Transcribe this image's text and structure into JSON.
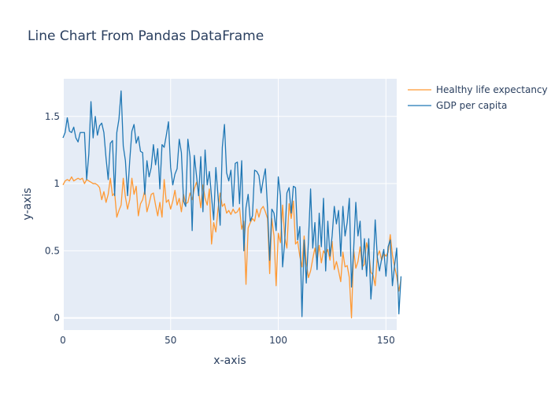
{
  "chart_data": {
    "type": "line",
    "title": "Line Chart From Pandas DataFrame",
    "xlabel": "x-axis",
    "ylabel": "y-axis",
    "xlim": [
      0,
      155
    ],
    "ylim": [
      -0.09,
      1.78
    ],
    "xticks": [
      0,
      50,
      100,
      150
    ],
    "yticks": [
      0,
      0.5,
      1,
      1.5
    ],
    "grid": true,
    "legend_position": "top-right-outside",
    "series": [
      {
        "name": "Healthy life expectancy",
        "color": "#ff9933",
        "values": [
          0.99,
          1.02,
          1.03,
          1.02,
          1.05,
          1.02,
          1.03,
          1.04,
          1.03,
          1.04,
          1.0,
          1.03,
          1.02,
          1.01,
          1.0,
          1.0,
          0.99,
          0.97,
          0.88,
          0.94,
          0.86,
          0.92,
          1.04,
          0.91,
          0.93,
          0.75,
          0.8,
          0.84,
          1.04,
          0.9,
          0.81,
          0.88,
          1.04,
          0.92,
          0.98,
          0.76,
          0.85,
          0.88,
          0.95,
          0.79,
          0.85,
          0.92,
          0.93,
          0.84,
          0.76,
          0.86,
          0.75,
          1.03,
          0.86,
          0.88,
          0.81,
          0.87,
          0.95,
          0.84,
          0.89,
          0.79,
          0.92,
          0.85,
          0.86,
          0.93,
          0.88,
          0.96,
          1.01,
          0.94,
          0.82,
          0.99,
          0.89,
          0.84,
          0.96,
          0.55,
          0.71,
          0.64,
          0.81,
          0.93,
          0.83,
          0.85,
          0.78,
          0.8,
          0.77,
          0.81,
          0.78,
          0.79,
          0.82,
          0.66,
          0.72,
          0.25,
          0.67,
          0.71,
          0.74,
          0.72,
          0.81,
          0.75,
          0.81,
          0.83,
          0.79,
          0.74,
          0.33,
          0.74,
          0.61,
          0.24,
          0.63,
          0.56,
          0.84,
          0.6,
          0.52,
          0.85,
          0.74,
          0.87,
          0.55,
          0.57,
          0.46,
          0.38,
          0.61,
          0.41,
          0.3,
          0.35,
          0.44,
          0.52,
          0.42,
          0.54,
          0.41,
          0.5,
          0.47,
          0.51,
          0.43,
          0.57,
          0.36,
          0.42,
          0.35,
          0.27,
          0.49,
          0.38,
          0.39,
          0.3,
          0.0,
          0.51,
          0.37,
          0.42,
          0.53,
          0.38,
          0.4,
          0.56,
          0.49,
          0.34,
          0.32,
          0.24,
          0.46,
          0.5,
          0.43,
          0.48,
          0.46,
          0.49,
          0.62,
          0.47,
          0.38,
          0.31,
          0.2,
          0.29
        ]
      },
      {
        "name": "GDP per capita",
        "color": "#1f77b4",
        "values": [
          1.34,
          1.38,
          1.49,
          1.39,
          1.38,
          1.42,
          1.34,
          1.31,
          1.38,
          1.38,
          1.38,
          1.03,
          1.22,
          1.61,
          1.34,
          1.5,
          1.36,
          1.43,
          1.45,
          1.38,
          1.19,
          1.03,
          1.3,
          1.32,
          0.91,
          1.38,
          1.48,
          1.69,
          1.28,
          1.17,
          0.91,
          1.17,
          1.39,
          1.44,
          1.3,
          1.35,
          1.24,
          1.23,
          0.92,
          1.17,
          1.05,
          1.12,
          1.29,
          1.14,
          1.26,
          0.96,
          1.29,
          1.27,
          1.36,
          1.46,
          1.12,
          0.99,
          1.07,
          1.11,
          1.33,
          1.23,
          0.87,
          0.83,
          1.33,
          1.2,
          0.65,
          1.21,
          1.06,
          0.91,
          1.2,
          0.79,
          1.25,
          0.99,
          1.09,
          0.9,
          0.73,
          1.12,
          0.91,
          0.69,
          1.27,
          1.44,
          1.08,
          1.02,
          1.1,
          0.83,
          1.15,
          1.16,
          0.85,
          1.17,
          0.5,
          0.82,
          0.92,
          0.72,
          0.76,
          1.1,
          1.09,
          1.06,
          0.93,
          1.03,
          1.11,
          0.82,
          0.43,
          0.81,
          0.78,
          0.65,
          1.05,
          0.91,
          0.38,
          0.57,
          0.93,
          0.97,
          0.78,
          0.98,
          0.97,
          0.58,
          0.68,
          0.01,
          0.58,
          0.26,
          0.57,
          0.96,
          0.52,
          0.71,
          0.36,
          0.78,
          0.53,
          0.89,
          0.35,
          0.72,
          0.46,
          0.61,
          0.83,
          0.7,
          0.8,
          0.46,
          0.83,
          0.61,
          0.71,
          0.89,
          0.23,
          0.51,
          0.86,
          0.61,
          0.72,
          0.36,
          0.59,
          0.31,
          0.59,
          0.14,
          0.35,
          0.73,
          0.45,
          0.35,
          0.44,
          0.51,
          0.31,
          0.53,
          0.58,
          0.24,
          0.39,
          0.52,
          0.03,
          0.31
        ]
      }
    ]
  }
}
